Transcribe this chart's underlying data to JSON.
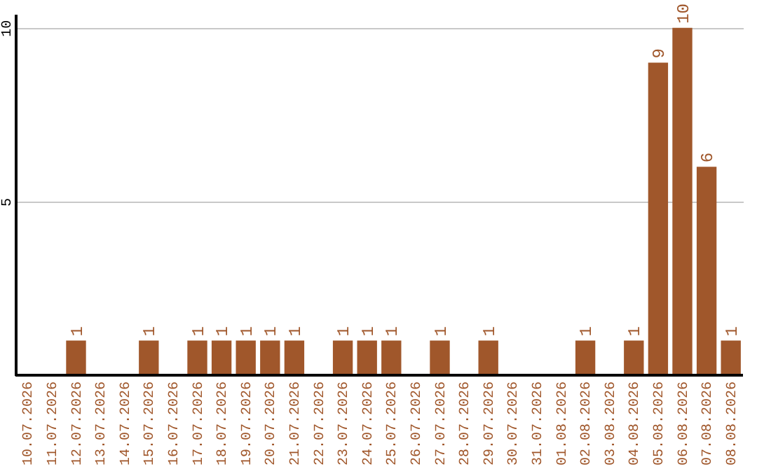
{
  "chart_data": {
    "type": "bar",
    "categories": [
      "10.07.2026",
      "11.07.2026",
      "12.07.2026",
      "13.07.2026",
      "14.07.2026",
      "15.07.2026",
      "16.07.2026",
      "17.07.2026",
      "18.07.2026",
      "19.07.2026",
      "20.07.2026",
      "21.07.2026",
      "22.07.2026",
      "23.07.2026",
      "24.07.2026",
      "25.07.2026",
      "26.07.2026",
      "27.07.2026",
      "28.07.2026",
      "29.07.2026",
      "30.07.2026",
      "31.07.2026",
      "01.08.2026",
      "02.08.2026",
      "03.08.2026",
      "04.08.2026",
      "05.08.2026",
      "06.08.2026",
      "07.08.2026",
      "08.08.2026"
    ],
    "values": [
      0,
      0,
      1,
      0,
      0,
      1,
      0,
      1,
      1,
      1,
      1,
      1,
      0,
      1,
      1,
      1,
      0,
      1,
      0,
      1,
      0,
      0,
      0,
      1,
      0,
      1,
      9,
      10,
      6,
      1
    ],
    "value_labels": [
      null,
      null,
      "1",
      null,
      null,
      "1",
      null,
      "1",
      "1",
      "1",
      "1",
      "1",
      null,
      "1",
      "1",
      "1",
      null,
      "1",
      null,
      "1",
      null,
      null,
      null,
      "1",
      null,
      "1",
      "9",
      "10",
      "6",
      "1"
    ],
    "color": "#a0572b",
    "ylim": [
      0,
      10.4
    ],
    "yticks": [
      5,
      10
    ],
    "grid": "y"
  }
}
